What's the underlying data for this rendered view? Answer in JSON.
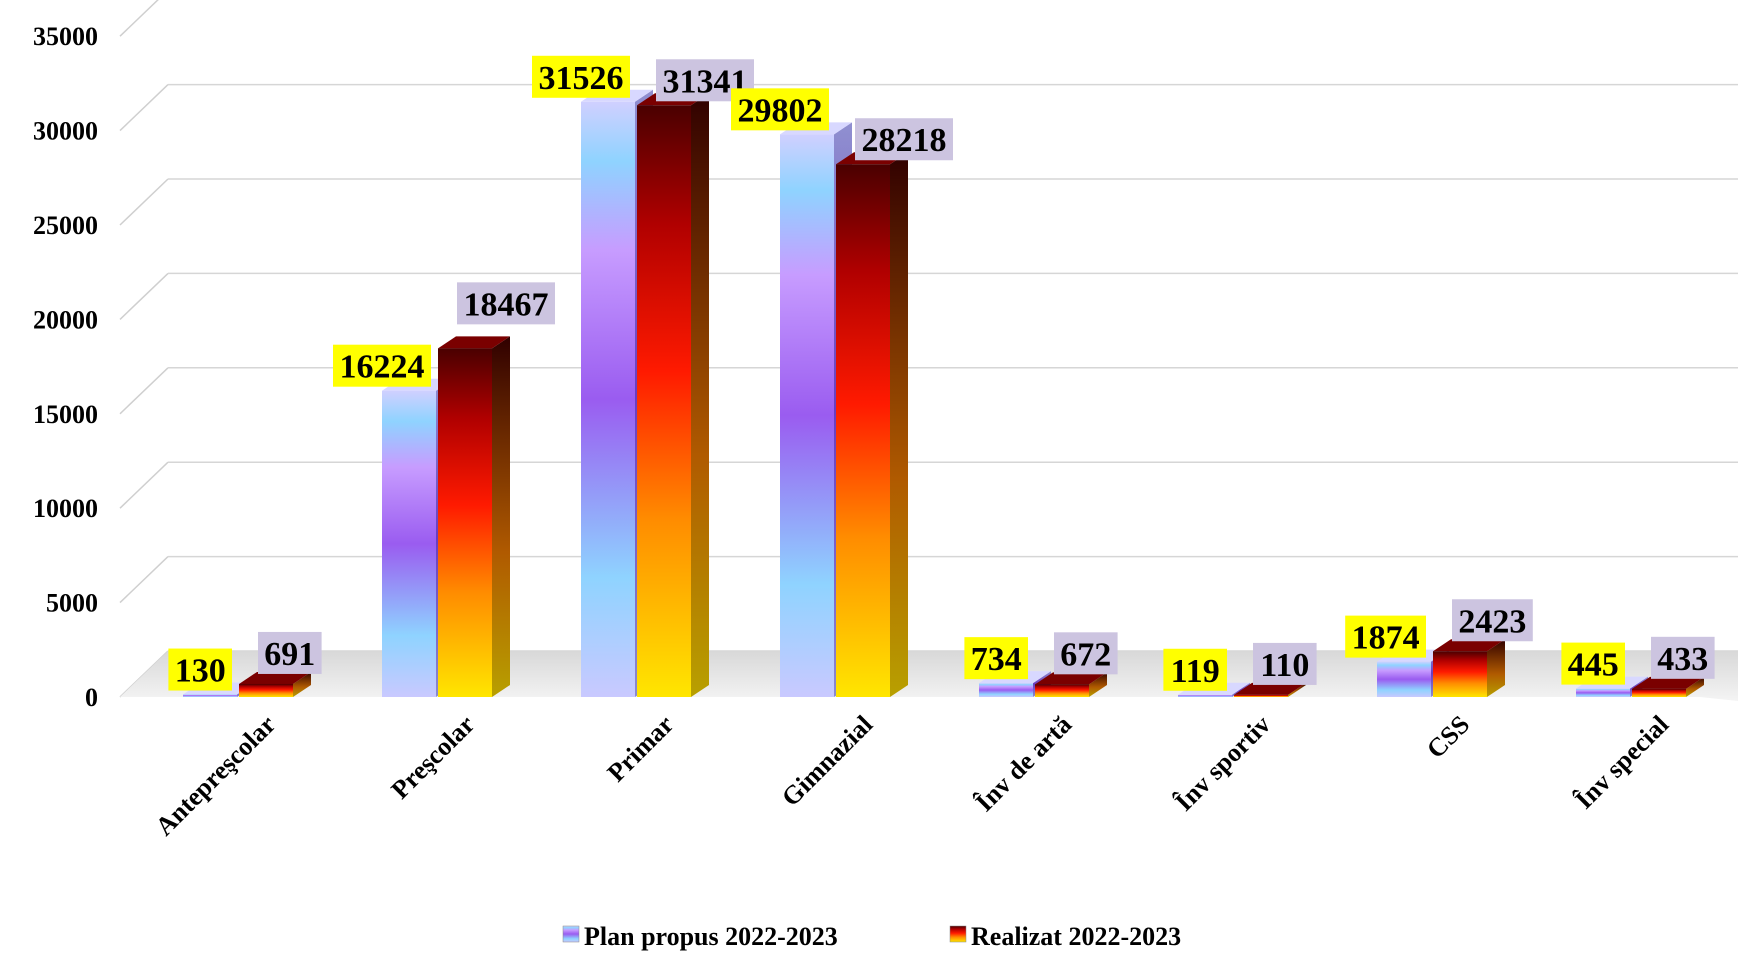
{
  "chart_data": {
    "type": "bar",
    "title": "",
    "xlabel": "",
    "ylabel": "",
    "ylim": [
      0,
      35000
    ],
    "yticks": [
      "0",
      "5000",
      "10000",
      "15000",
      "20000",
      "25000",
      "30000",
      "35000"
    ],
    "grid": true,
    "legend_position": "bottom",
    "categories": [
      "Antepreşcolar",
      "Preşcolar",
      "Primar",
      "Gimnazial",
      "Înv de artă",
      "Înv sportiv",
      "CSS",
      "Înv special"
    ],
    "series": [
      {
        "name": "Plan propus 2022-2023",
        "values": [
          130,
          16224,
          31526,
          29802,
          734,
          119,
          1874,
          445
        ],
        "labels": [
          "130",
          "16224",
          "31526",
          "29802",
          "734",
          "119",
          "1874",
          "445"
        ],
        "label_background": "#ffff00",
        "colors": [
          "#c8c8ff",
          "#8fd3ff",
          "#b98cff",
          "#9a5cf0"
        ]
      },
      {
        "name": "Realizat 2022-2023",
        "values": [
          691,
          18467,
          31341,
          28218,
          672,
          110,
          2423,
          433
        ],
        "labels": [
          "691",
          "18467",
          "31341",
          "28218",
          "672",
          "110",
          "2423",
          "433"
        ],
        "label_background": "#ccc4e0",
        "colors": [
          "#ffe600",
          "#ff8c00",
          "#ff1a00",
          "#5a0000"
        ]
      }
    ]
  }
}
